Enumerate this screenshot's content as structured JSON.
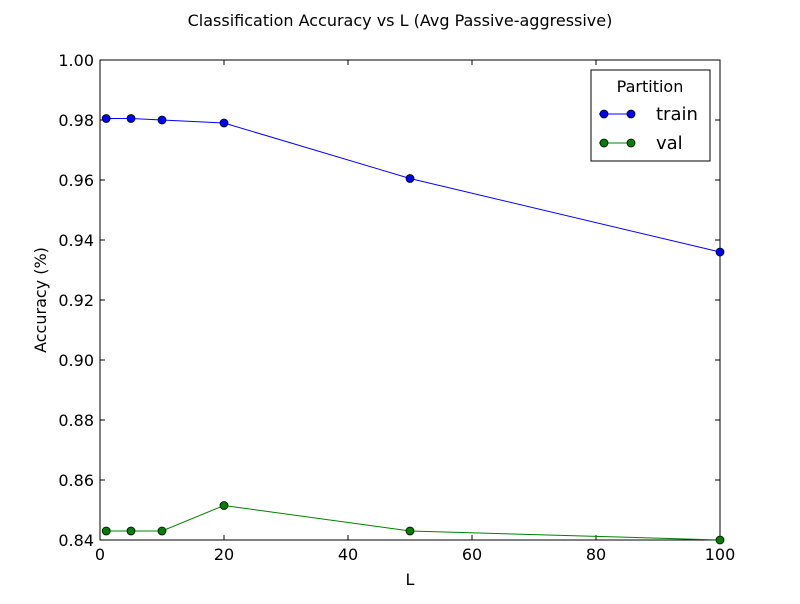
{
  "chart_data": {
    "type": "line",
    "title": "Classification Accuracy vs L (Avg Passive-aggressive)",
    "xlabel": "L",
    "ylabel": "Accuracy (%)",
    "xlim": [
      0,
      100
    ],
    "ylim": [
      0.84,
      1.0
    ],
    "x_ticks": [
      0,
      20,
      40,
      60,
      80,
      100
    ],
    "x_tick_labels": [
      "0",
      "20",
      "40",
      "60",
      "80",
      "100"
    ],
    "y_ticks": [
      0.84,
      0.86,
      0.88,
      0.9,
      0.92,
      0.94,
      0.96,
      0.98,
      1.0
    ],
    "y_tick_labels": [
      "0.84",
      "0.86",
      "0.88",
      "0.90",
      "0.92",
      "0.94",
      "0.96",
      "0.98",
      "1.00"
    ],
    "grid": false,
    "legend": {
      "title": "Partition",
      "placement": "top-right"
    },
    "series": [
      {
        "name": "train",
        "color": "#0000ff",
        "marker": "circle",
        "x": [
          1,
          5,
          10,
          20,
          50,
          100
        ],
        "y": [
          0.9805,
          0.9805,
          0.98,
          0.979,
          0.9605,
          0.936
        ]
      },
      {
        "name": "val",
        "color": "#008000",
        "marker": "circle",
        "x": [
          1,
          5,
          10,
          20,
          50,
          100
        ],
        "y": [
          0.843,
          0.843,
          0.843,
          0.8515,
          0.843,
          0.84
        ]
      }
    ]
  }
}
